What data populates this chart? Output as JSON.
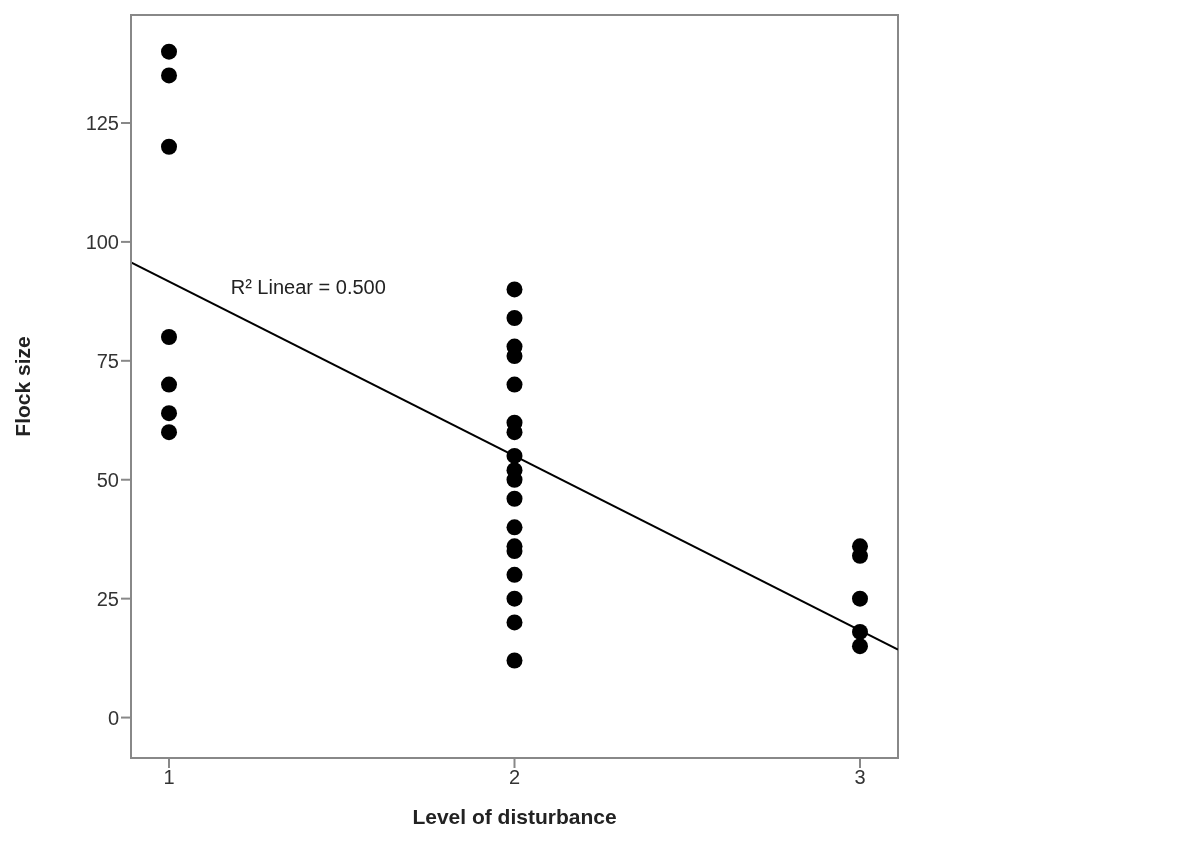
{
  "chart_data": {
    "type": "scatter",
    "xlabel": "Level of disturbance",
    "ylabel": "Flock size",
    "xlim": [
      0.89,
      3.11
    ],
    "xticks": [
      1,
      2,
      3
    ],
    "ylim": [
      -8.5,
      147.7
    ],
    "yticks": [
      0,
      25,
      50,
      75,
      100,
      125
    ],
    "series": [
      {
        "marker": "circle",
        "color": "#000000",
        "x": [
          1,
          1,
          1,
          1,
          1,
          1,
          1,
          2,
          2,
          2,
          2,
          2,
          2,
          2,
          2,
          2,
          2,
          2,
          2,
          2,
          2,
          2,
          2,
          2,
          2,
          3,
          3,
          3,
          3,
          3
        ],
        "values": [
          140,
          135,
          120,
          80,
          70,
          64,
          60,
          90,
          84,
          78,
          76,
          70,
          62,
          60,
          55,
          52,
          50,
          46,
          40,
          36,
          35,
          30,
          25,
          20,
          12,
          36,
          34,
          25,
          18,
          15
        ]
      },
      {
        "type": "line",
        "marker": "none",
        "color": "#000000",
        "x": [
          0.89,
          3.11
        ],
        "values": [
          95.7,
          14.3
        ]
      }
    ],
    "annotations": [
      "R² Linear = 0.500"
    ]
  }
}
